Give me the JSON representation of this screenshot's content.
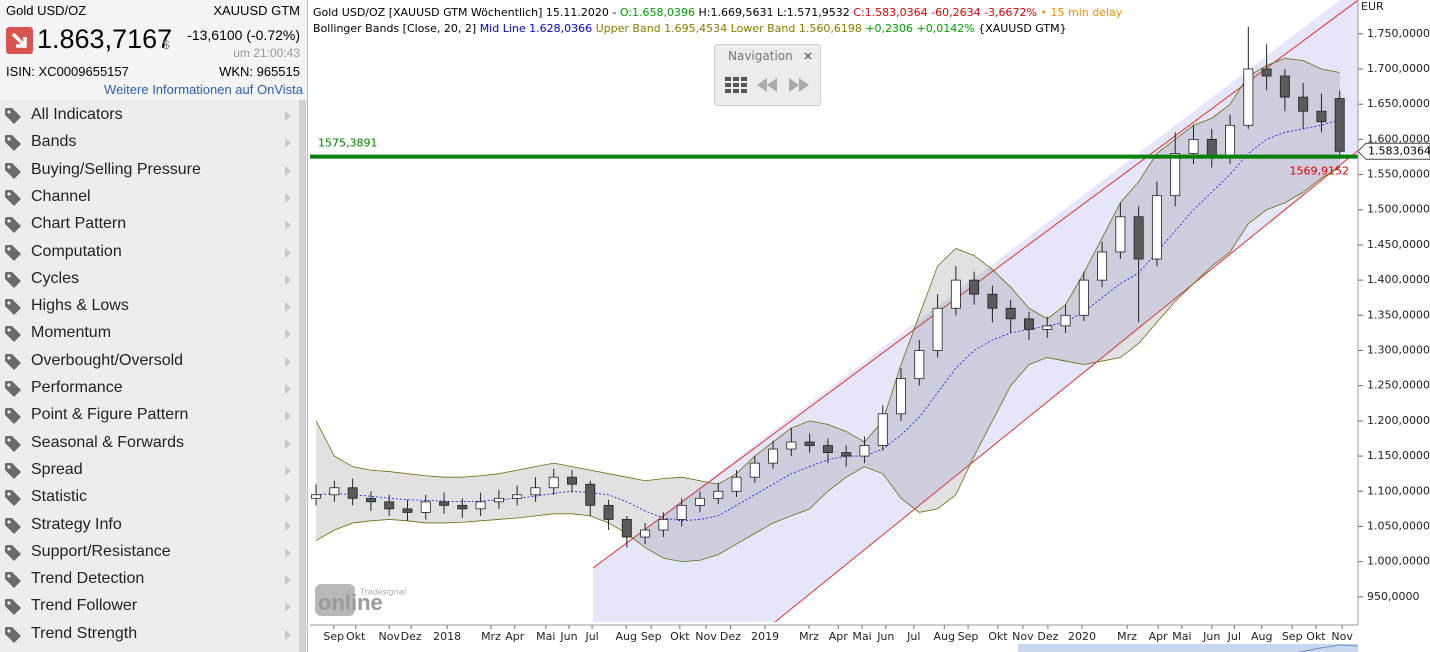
{
  "header": {
    "name": "Gold USD/OZ",
    "symbol": "XAUUSD GTM",
    "price": "1.863,7167",
    "currency": "$",
    "change": "-13,6100 (-0.72%)",
    "time": "um 21:00:43",
    "isin": "ISIN: XC0009655157",
    "wkn": "WKN: 965515",
    "link": "Weitere Informationen auf OnVista"
  },
  "sidebar": {
    "items": [
      "All Indicators",
      "Bands",
      "Buying/Selling Pressure",
      "Channel",
      "Chart Pattern",
      "Computation",
      "Cycles",
      "Highs & Lows",
      "Momentum",
      "Overbought/Oversold",
      "Performance",
      "Point & Figure Pattern",
      "Seasonal & Forwards",
      "Spread",
      "Statistic",
      "Strategy Info",
      "Support/Resistance",
      "Trend Detection",
      "Trend Follower",
      "Trend Strength"
    ]
  },
  "info": {
    "line1": [
      {
        "text": "Gold USD/OZ [XAUUSD GTM Wöchentlich] 15.11.2020 - ",
        "color": "#000000"
      },
      {
        "text": "O:1.658,0396",
        "color": "#00a000"
      },
      {
        "text": " H:1.669,5631 L:1.571,9532 ",
        "color": "#000000"
      },
      {
        "text": "C:1.583,0364 -60,2634 -3,6672%",
        "color": "#e00000"
      },
      {
        "text": " • 15 min delay",
        "color": "#f09000"
      }
    ],
    "line2": [
      {
        "text": "Bollinger Bands [Close, 20, 2] ",
        "color": "#000000"
      },
      {
        "text": "Mid Line 1.628,0366 ",
        "color": "#0000e0"
      },
      {
        "text": "Upper Band 1.695,4534 Lower Band 1.560,6198 ",
        "color": "#808000"
      },
      {
        "text": "+0,2306 +0,0142% ",
        "color": "#00a000"
      },
      {
        "text": "{XAUUSD GTM}",
        "color": "#000000"
      }
    ]
  },
  "navigation": {
    "title": "Navigation"
  },
  "watermark": {
    "brand": "Tradesignal",
    "text": "online"
  },
  "chart_data": {
    "type": "candlestick",
    "unit": "EUR",
    "x": [
      0,
      3,
      6,
      9,
      12,
      15,
      18,
      21,
      24,
      27,
      30,
      33,
      36,
      39,
      42,
      45,
      48,
      51,
      54,
      57,
      60,
      63,
      66,
      69,
      72,
      75,
      78,
      81,
      84,
      87,
      90,
      93,
      96,
      99,
      102,
      105,
      108,
      111,
      114,
      117,
      120,
      123,
      126,
      129,
      132,
      135,
      138,
      141,
      144,
      147,
      150,
      153,
      156,
      159,
      162,
      165,
      168
    ],
    "open": [
      1090,
      1095,
      1105,
      1090,
      1085,
      1075,
      1070,
      1085,
      1080,
      1075,
      1085,
      1090,
      1095,
      1105,
      1120,
      1110,
      1080,
      1060,
      1035,
      1045,
      1060,
      1080,
      1090,
      1100,
      1120,
      1140,
      1160,
      1170,
      1165,
      1155,
      1150,
      1165,
      1210,
      1260,
      1300,
      1360,
      1400,
      1380,
      1360,
      1345,
      1330,
      1335,
      1350,
      1400,
      1440,
      1490,
      1430,
      1520,
      1580,
      1600,
      1575,
      1620,
      1700,
      1690,
      1660,
      1640,
      1658.0396
    ],
    "high": [
      1110,
      1115,
      1118,
      1100,
      1095,
      1088,
      1095,
      1098,
      1090,
      1098,
      1102,
      1108,
      1120,
      1132,
      1130,
      1115,
      1088,
      1065,
      1055,
      1070,
      1090,
      1100,
      1112,
      1130,
      1150,
      1172,
      1190,
      1182,
      1175,
      1165,
      1178,
      1222,
      1275,
      1315,
      1380,
      1420,
      1412,
      1392,
      1372,
      1355,
      1348,
      1365,
      1412,
      1455,
      1510,
      1505,
      1540,
      1610,
      1620,
      1615,
      1635,
      1760,
      1735,
      1700,
      1680,
      1665,
      1669.5631
    ],
    "low": [
      1080,
      1085,
      1080,
      1072,
      1065,
      1058,
      1060,
      1068,
      1062,
      1065,
      1075,
      1080,
      1085,
      1095,
      1098,
      1065,
      1045,
      1020,
      1025,
      1035,
      1050,
      1070,
      1082,
      1092,
      1112,
      1132,
      1150,
      1155,
      1140,
      1135,
      1140,
      1158,
      1200,
      1250,
      1290,
      1350,
      1365,
      1340,
      1325,
      1315,
      1318,
      1325,
      1342,
      1390,
      1430,
      1340,
      1420,
      1505,
      1565,
      1560,
      1565,
      1615,
      1670,
      1640,
      1615,
      1610,
      1571.9532
    ],
    "close": [
      1095,
      1105,
      1090,
      1085,
      1075,
      1070,
      1085,
      1080,
      1075,
      1085,
      1090,
      1095,
      1105,
      1120,
      1110,
      1080,
      1060,
      1035,
      1045,
      1060,
      1080,
      1090,
      1100,
      1120,
      1140,
      1160,
      1170,
      1165,
      1155,
      1150,
      1165,
      1210,
      1260,
      1300,
      1360,
      1400,
      1380,
      1360,
      1345,
      1330,
      1335,
      1350,
      1400,
      1440,
      1490,
      1430,
      1520,
      1580,
      1600,
      1575,
      1620,
      1700,
      1690,
      1660,
      1640,
      1625,
      1583.0364
    ],
    "bands": {
      "upper": [
        1200,
        1150,
        1135,
        1130,
        1128,
        1125,
        1122,
        1120,
        1120,
        1122,
        1125,
        1130,
        1135,
        1140,
        1135,
        1130,
        1125,
        1120,
        1115,
        1118,
        1120,
        1115,
        1110,
        1125,
        1150,
        1170,
        1190,
        1200,
        1195,
        1185,
        1170,
        1200,
        1280,
        1350,
        1420,
        1445,
        1435,
        1415,
        1390,
        1360,
        1345,
        1365,
        1410,
        1460,
        1510,
        1540,
        1580,
        1600,
        1620,
        1630,
        1650,
        1690,
        1705,
        1715,
        1712,
        1700,
        1695
      ],
      "mid": [
        1095,
        1097,
        1095,
        1093,
        1090,
        1088,
        1087,
        1086,
        1085,
        1086,
        1088,
        1090,
        1093,
        1097,
        1100,
        1098,
        1095,
        1085,
        1072,
        1062,
        1058,
        1060,
        1065,
        1080,
        1095,
        1110,
        1125,
        1135,
        1145,
        1150,
        1150,
        1160,
        1180,
        1205,
        1240,
        1275,
        1300,
        1315,
        1325,
        1330,
        1335,
        1340,
        1355,
        1375,
        1395,
        1410,
        1440,
        1470,
        1500,
        1525,
        1550,
        1580,
        1600,
        1610,
        1615,
        1620,
        1628
      ],
      "lower": [
        1030,
        1045,
        1055,
        1058,
        1060,
        1058,
        1055,
        1055,
        1056,
        1058,
        1060,
        1062,
        1065,
        1068,
        1068,
        1065,
        1055,
        1040,
        1020,
        1005,
        1000,
        1002,
        1010,
        1025,
        1040,
        1055,
        1065,
        1075,
        1100,
        1120,
        1135,
        1125,
        1090,
        1070,
        1075,
        1095,
        1150,
        1200,
        1250,
        1280,
        1290,
        1285,
        1280,
        1285,
        1290,
        1310,
        1340,
        1370,
        1395,
        1420,
        1440,
        1480,
        1500,
        1510,
        1525,
        1545,
        1560
      ]
    },
    "hline": {
      "value": 1575.3891,
      "label": "1575,3891",
      "color": "#008000"
    },
    "channel_mark": {
      "value": 1569.9152,
      "label": "1569,9152",
      "color": "#e00000"
    },
    "last": {
      "value": 1583.0364,
      "label": "1.583,0364"
    },
    "xlim": [
      -1,
      171
    ],
    "ylim": [
      910,
      1798
    ],
    "xticks": [
      {
        "value": 2.9,
        "label": "Sep"
      },
      {
        "value": 6.5,
        "label": "Okt"
      },
      {
        "value": 12.0,
        "label": "Nov"
      },
      {
        "value": 15.6,
        "label": "Dez"
      },
      {
        "value": 21.5,
        "label": "2018"
      },
      {
        "value": 28.7,
        "label": "Mrz"
      },
      {
        "value": 32.6,
        "label": "Apr"
      },
      {
        "value": 37.7,
        "label": "Mai"
      },
      {
        "value": 41.5,
        "label": "Jun"
      },
      {
        "value": 45.3,
        "label": "Jul"
      },
      {
        "value": 50.9,
        "label": "Aug"
      },
      {
        "value": 55.0,
        "label": "Sep"
      },
      {
        "value": 59.7,
        "label": "Okt"
      },
      {
        "value": 64.0,
        "label": "Nov"
      },
      {
        "value": 68.0,
        "label": "Dez"
      },
      {
        "value": 73.7,
        "label": "2019"
      },
      {
        "value": 80.9,
        "label": "Mrz"
      },
      {
        "value": 85.7,
        "label": "Apr"
      },
      {
        "value": 89.6,
        "label": "Mai"
      },
      {
        "value": 93.5,
        "label": "Jun"
      },
      {
        "value": 98.1,
        "label": "Jul"
      },
      {
        "value": 103.1,
        "label": "Aug"
      },
      {
        "value": 107.0,
        "label": "Sep"
      },
      {
        "value": 111.9,
        "label": "Okt"
      },
      {
        "value": 116.0,
        "label": "Nov"
      },
      {
        "value": 120.1,
        "label": "Dez"
      },
      {
        "value": 125.7,
        "label": "2020"
      },
      {
        "value": 133.1,
        "label": "Mrz"
      },
      {
        "value": 138.2,
        "label": "Apr"
      },
      {
        "value": 142.1,
        "label": "Mai"
      },
      {
        "value": 147.0,
        "label": "Jun"
      },
      {
        "value": 150.7,
        "label": "Jul"
      },
      {
        "value": 155.2,
        "label": "Aug"
      },
      {
        "value": 160.2,
        "label": "Sep"
      },
      {
        "value": 164.1,
        "label": "Okt"
      },
      {
        "value": 168.4,
        "label": "Nov"
      }
    ],
    "yticks": [
      {
        "value": 1750,
        "label": "1.750,0000"
      },
      {
        "value": 1700,
        "label": "1.700,0000"
      },
      {
        "value": 1650,
        "label": "1.650,0000"
      },
      {
        "value": 1600,
        "label": "1.600,0000"
      },
      {
        "value": 1550,
        "label": "1.550,0000"
      },
      {
        "value": 1500,
        "label": "1.500,0000"
      },
      {
        "value": 1450,
        "label": "1.450,0000"
      },
      {
        "value": 1400,
        "label": "1.400,0000"
      },
      {
        "value": 1350,
        "label": "1.350,0000"
      },
      {
        "value": 1300,
        "label": "1.300,0000"
      },
      {
        "value": 1250,
        "label": "1.250,0000"
      },
      {
        "value": 1200,
        "label": "1.200,0000"
      },
      {
        "value": 1150,
        "label": "1.150,0000"
      },
      {
        "value": 1100,
        "label": "1.100,0000"
      },
      {
        "value": 1050,
        "label": "1.050,0000"
      },
      {
        "value": 1000,
        "label": "1.000,0000"
      },
      {
        "value": 950,
        "label": "950,0000"
      }
    ],
    "up_color": "#ffffff",
    "down_color": "#5a5a5a"
  }
}
